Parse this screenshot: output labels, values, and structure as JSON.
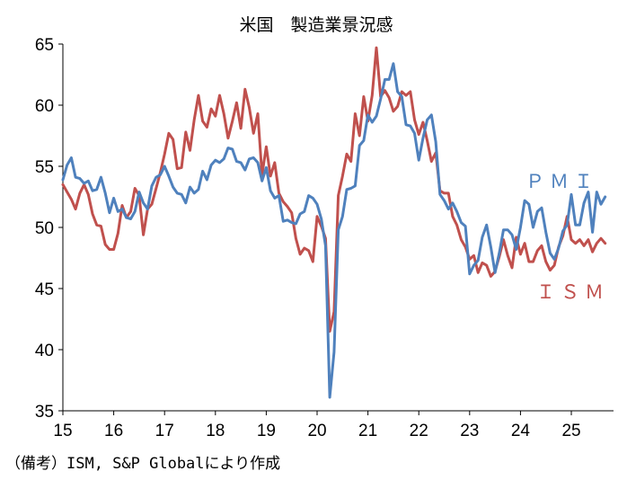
{
  "chart_data": {
    "type": "line",
    "title": "米国　製造業景況感",
    "xlabel": "",
    "ylabel": "",
    "ylim": [
      35,
      65
    ],
    "yticks": [
      35,
      40,
      45,
      50,
      55,
      60,
      65
    ],
    "xlim": [
      2015,
      2025.83
    ],
    "xticks": [
      {
        "value": 2015,
        "label": "15"
      },
      {
        "value": 2016,
        "label": "16"
      },
      {
        "value": 2017,
        "label": "17"
      },
      {
        "value": 2018,
        "label": "18"
      },
      {
        "value": 2019,
        "label": "19"
      },
      {
        "value": 2020,
        "label": "20"
      },
      {
        "value": 2021,
        "label": "21"
      },
      {
        "value": 2022,
        "label": "22"
      },
      {
        "value": 2023,
        "label": "23"
      },
      {
        "value": 2024,
        "label": "24"
      },
      {
        "value": 2025,
        "label": "25"
      }
    ],
    "series": [
      {
        "name": "ＩＳＭ",
        "label": "ＩＳＭ",
        "color": "#c0504d",
        "start": 2015.0,
        "step": 0.08333,
        "values": [
          53.5,
          52.9,
          52.3,
          51.5,
          52.8,
          53.5,
          52.7,
          51.1,
          50.2,
          50.1,
          48.6,
          48.2,
          48.2,
          49.5,
          51.8,
          50.8,
          51.3,
          53.2,
          52.6,
          49.4,
          51.5,
          51.9,
          53.2,
          54.5,
          56.0,
          57.7,
          57.2,
          54.8,
          54.9,
          57.8,
          56.3,
          58.8,
          60.8,
          58.7,
          58.2,
          59.7,
          59.1,
          60.8,
          59.3,
          57.3,
          58.7,
          60.2,
          58.1,
          61.3,
          59.8,
          57.7,
          59.3,
          54.3,
          56.6,
          54.2,
          55.3,
          52.8,
          52.1,
          51.7,
          51.2,
          49.1,
          47.8,
          48.3,
          48.1,
          47.2,
          50.9,
          50.1,
          49.1,
          41.5,
          43.1,
          52.6,
          54.2,
          56.0,
          55.4,
          59.3,
          57.5,
          60.7,
          58.7,
          60.8,
          64.7,
          60.7,
          61.2,
          60.6,
          59.5,
          59.9,
          61.1,
          60.8,
          61.1,
          58.8,
          57.6,
          58.6,
          57.1,
          55.4,
          56.1,
          53.0,
          52.8,
          52.8,
          50.9,
          50.2,
          49.0,
          48.4,
          47.4,
          47.7,
          46.3,
          47.1,
          46.9,
          46.0,
          46.4,
          47.6,
          49.0,
          47.7,
          46.7,
          49.2,
          47.8,
          48.7,
          47.2,
          47.2,
          48.1,
          48.5,
          47.2,
          46.5,
          46.9,
          48.4,
          49.3,
          50.9,
          49.0,
          48.7,
          49.0,
          48.5,
          49.0,
          48.0,
          48.7,
          49.1,
          48.7
        ]
      },
      {
        "name": "ＰＭＩ",
        "label": "ＰＭＩ",
        "color": "#4f81bd",
        "start": 2015.0,
        "step": 0.08333,
        "values": [
          53.9,
          55.1,
          55.7,
          54.1,
          54.0,
          53.6,
          53.8,
          53.0,
          53.1,
          54.1,
          52.8,
          51.2,
          52.4,
          51.3,
          51.5,
          50.8,
          50.7,
          51.3,
          52.9,
          52.0,
          51.5,
          53.4,
          54.1,
          54.3,
          55.0,
          54.2,
          53.3,
          52.8,
          52.7,
          52.0,
          53.3,
          52.8,
          53.1,
          54.6,
          53.9,
          55.1,
          55.5,
          55.3,
          55.6,
          56.5,
          56.4,
          55.4,
          55.3,
          54.7,
          55.6,
          55.7,
          55.3,
          53.8,
          54.9,
          53.0,
          52.4,
          52.6,
          50.5,
          50.6,
          50.4,
          50.3,
          51.1,
          51.3,
          52.6,
          52.4,
          51.9,
          50.7,
          48.5,
          36.1,
          39.8,
          49.8,
          50.9,
          53.1,
          53.2,
          53.4,
          56.7,
          57.1,
          59.2,
          58.6,
          59.1,
          60.5,
          62.1,
          62.1,
          63.4,
          61.1,
          60.7,
          58.4,
          58.3,
          57.7,
          55.5,
          57.3,
          58.8,
          59.2,
          57.0,
          52.7,
          52.2,
          51.5,
          52.0,
          51.3,
          50.4,
          50.1,
          46.2,
          46.9,
          47.3,
          49.2,
          50.2,
          48.4,
          46.3,
          47.9,
          49.8,
          49.8,
          49.4,
          48.2,
          50.0,
          52.2,
          51.9,
          50.0,
          51.3,
          51.6,
          49.6,
          47.9,
          47.4,
          48.3,
          49.7,
          50.2,
          52.7,
          50.2,
          50.2,
          52.0,
          52.9,
          49.6,
          52.9,
          51.9,
          52.5
        ]
      }
    ],
    "source_note": "（備考）ISM, S&P Globalにより作成"
  }
}
